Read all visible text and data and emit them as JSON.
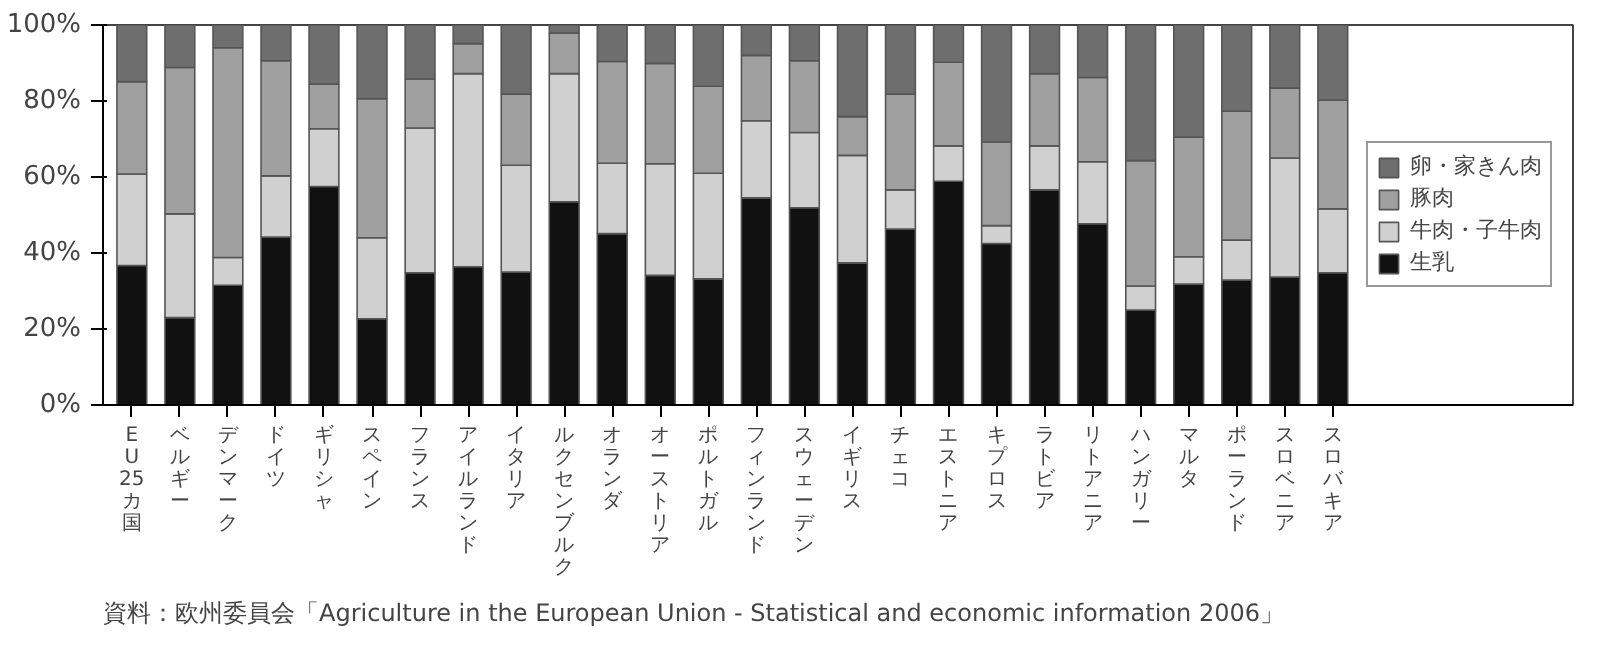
{
  "chart_data": {
    "type": "bar",
    "stacked": true,
    "categories": [
      "EU25カ国",
      "ベルギー",
      "デンマーク",
      "ドイツ",
      "ギリシャ",
      "スペイン",
      "フランス",
      "アイルランド",
      "イタリア",
      "ルクセンブルク",
      "オランダ",
      "オーストリア",
      "ポルトガル",
      "フィンランド",
      "スウェーデン",
      "イギリス",
      "チェコ",
      "エストニア",
      "キプロス",
      "ラトビア",
      "リトアニア",
      "ハンガリー",
      "マルタ",
      "ポーランド",
      "スロベニア",
      "スロバキア"
    ],
    "series": [
      {
        "name": "生乳",
        "color": "#111111",
        "values": [
          36.7,
          23,
          31.5,
          44.2,
          57.5,
          22.7,
          34.8,
          36.4,
          35,
          53.5,
          45.1,
          34.1,
          33.2,
          54.5,
          51.9,
          37.4,
          46.3,
          58.9,
          42.5,
          56.6,
          47.7,
          25,
          31.8,
          32.9,
          33.7,
          34.8
        ]
      },
      {
        "name": "牛肉・子牛肉",
        "color": "#d0d0d0",
        "values": [
          24.1,
          27.3,
          7.3,
          16.1,
          15.2,
          21.3,
          38.1,
          50.8,
          28.1,
          33.7,
          18.5,
          29.4,
          27.8,
          20.3,
          19.8,
          28.3,
          10.3,
          9.3,
          4.7,
          11.6,
          16.3,
          6.3,
          7.2,
          10.5,
          31.3,
          16.8
        ]
      },
      {
        "name": "豚肉",
        "color": "#a0a0a0",
        "values": [
          24.3,
          38.5,
          55.2,
          30.3,
          11.7,
          36.6,
          12.9,
          7.9,
          18.7,
          10.7,
          26.8,
          26.4,
          22.9,
          17.2,
          18.9,
          10.2,
          25.2,
          22,
          22,
          19,
          22.2,
          33,
          31.5,
          33.9,
          18.4,
          28.6
        ]
      },
      {
        "name": "卵・家きん肉",
        "color": "#6e6e6e",
        "values": [
          14.9,
          11.2,
          6,
          9.4,
          15.6,
          19.4,
          14.2,
          4.9,
          18.2,
          2.1,
          9.6,
          10.1,
          16.1,
          8,
          9.4,
          24.1,
          18.2,
          9.8,
          30.8,
          12.8,
          13.8,
          35.7,
          29.5,
          22.7,
          16.6,
          19.8
        ]
      }
    ],
    "ylim": [
      0,
      100
    ],
    "yticks": [
      {
        "value": 0,
        "label": "0%"
      },
      {
        "value": 20,
        "label": "20%"
      },
      {
        "value": 40,
        "label": "40%"
      },
      {
        "value": 60,
        "label": "60%"
      },
      {
        "value": 80,
        "label": "80%"
      },
      {
        "value": 100,
        "label": "100%"
      }
    ],
    "grid": false,
    "legend": "right",
    "annotations": [
      "資料：欧州委員会「Agriculture in the European Union - Statistical and economic information 2006」"
    ]
  }
}
